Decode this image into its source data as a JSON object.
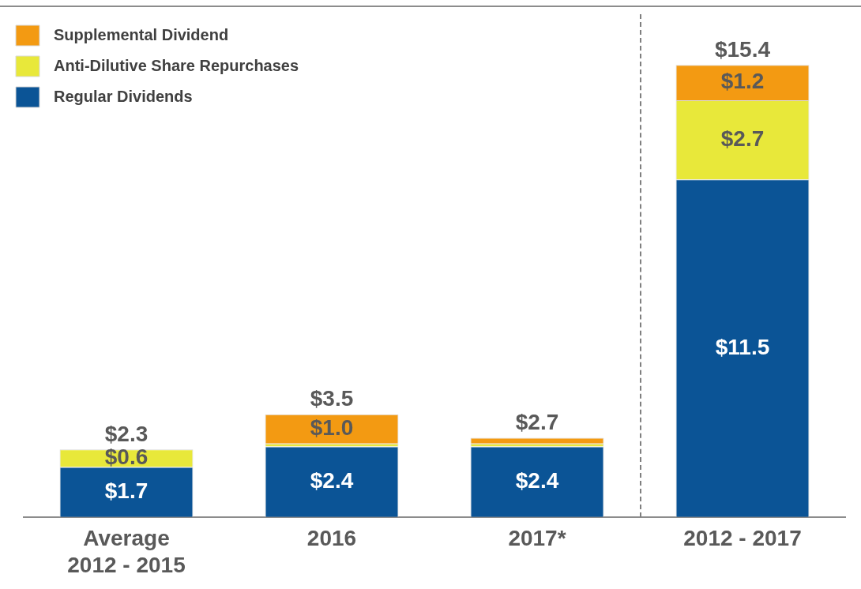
{
  "chart_data": {
    "type": "bar",
    "stacked": true,
    "legend": "top left",
    "grid": false,
    "categories": [
      "Average 2012 - 2015",
      "2016",
      "2017*",
      "2012 - 2017"
    ],
    "series": [
      {
        "name": "Regular Dividends",
        "color": "#0b5496",
        "values": [
          1.7,
          2.4,
          2.4,
          11.5
        ],
        "value_labels": [
          "$1.7",
          "$2.4",
          "$2.4",
          "$11.5"
        ]
      },
      {
        "name": "Anti-Dilutive Share Repurchases",
        "color": "#e8e83a",
        "values": [
          0.6,
          0.1,
          0.1,
          2.7
        ],
        "value_labels": [
          "$0.6",
          null,
          null,
          "$2.7"
        ]
      },
      {
        "name": "Supplemental Dividend",
        "color": "#f39a12",
        "values": [
          null,
          1.0,
          0.2,
          1.2
        ],
        "value_labels": [
          null,
          "$1.0",
          null,
          "$1.2"
        ]
      }
    ],
    "totals": [
      "$2.3",
      "$3.5",
      "$2.7",
      "$15.4"
    ]
  }
}
